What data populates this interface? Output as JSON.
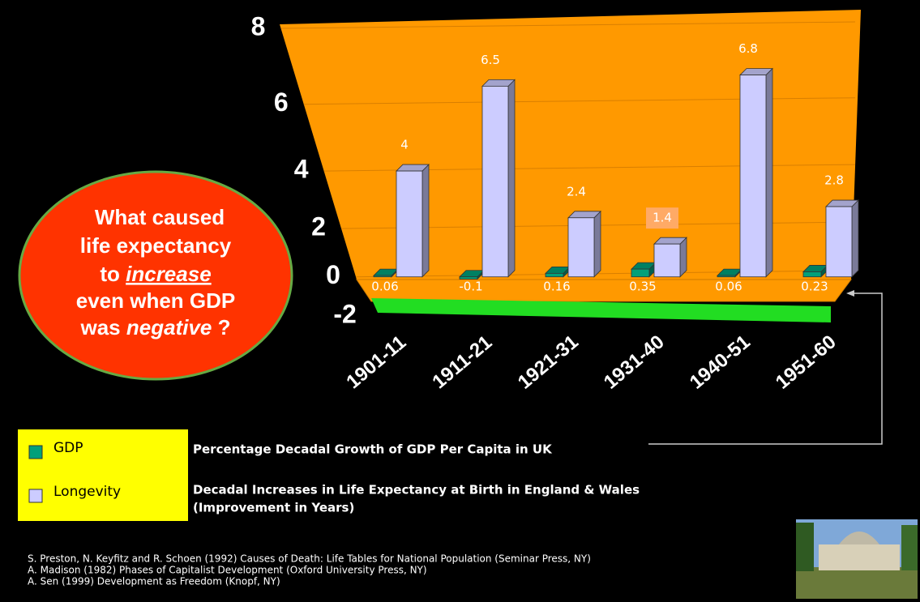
{
  "chart_data": {
    "type": "bar3d",
    "categories": [
      "1901-11",
      "1911-21",
      "1921-31",
      "1931-40",
      "1940-51",
      "1951-60"
    ],
    "series": [
      {
        "name": "GDP",
        "color": "#00a07a",
        "description": [
          "Percentage Decadal Growth of GDP Per Capita in UK"
        ],
        "values": [
          0.06,
          -0.1,
          0.16,
          0.35,
          0.06,
          0.23
        ]
      },
      {
        "name": "Longevity",
        "color": "#ccccff",
        "description": [
          "Decadal Increases in Life Expectancy at Birth in England & Wales",
          "(Improvement in Years)"
        ],
        "values": [
          4,
          6.5,
          2.4,
          1.4,
          6.8,
          2.8
        ]
      }
    ],
    "ylim": [
      -2,
      8
    ],
    "yticks": [
      -2,
      0,
      2,
      4,
      6,
      8
    ],
    "grid": true,
    "callout": {
      "line1": "What caused",
      "line2": "life expectancy",
      "line3a": "to",
      "line3b": "increase",
      "line4": "even when GDP",
      "line5a": "was",
      "line5b": "negative",
      "line5c": "?"
    },
    "references": [
      "S. Preston, N. Keyfitz and R. Schoen (1992) Causes of Death: Life Tables for National Population (Seminar Press, NY)",
      "A. Madison (1982) Phases of Capitalist Development (Oxford University Press, NY)",
      "A. Sen (1999) Development as Freedom (Knopf, NY)"
    ]
  }
}
